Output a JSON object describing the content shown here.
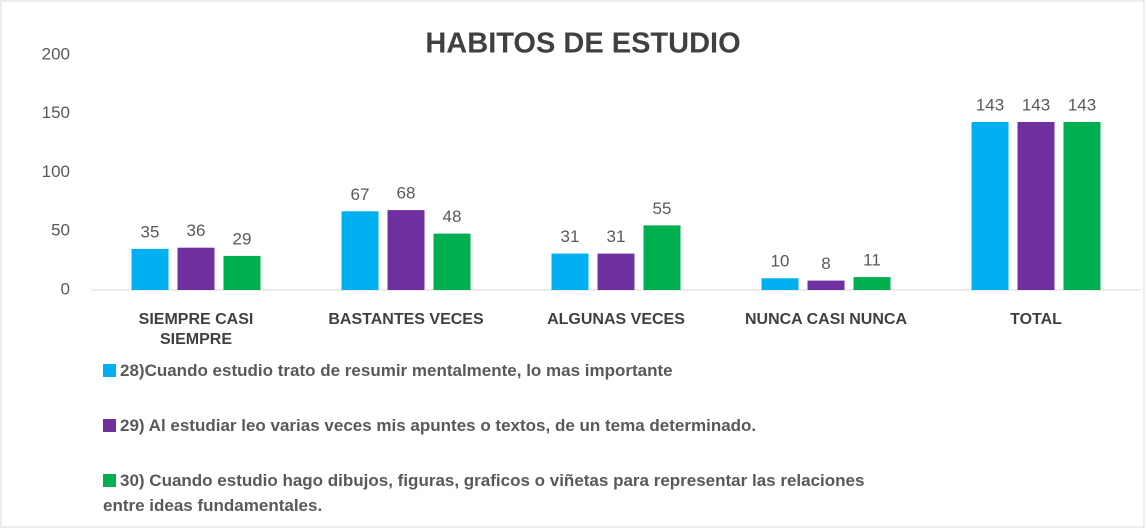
{
  "chart_data": {
    "type": "bar",
    "title": "HABITOS DE ESTUDIO",
    "categories": [
      "SIEMPRE CASI SIEMPRE",
      "BASTANTES VECES",
      "ALGUNAS VECES",
      "NUNCA CASI NUNCA",
      "TOTAL"
    ],
    "series": [
      {
        "name": "28)Cuando estudio trato de resumir mentalmente, lo mas importante",
        "color": "#00b0f0",
        "values": [
          35,
          67,
          31,
          10,
          143
        ]
      },
      {
        "name": "29) Al estudiar leo varias veces mis apuntes o textos, de un tema determinado.",
        "color": "#7030a0",
        "values": [
          36,
          68,
          31,
          8,
          143
        ]
      },
      {
        "name": "30) Cuando estudio hago dibujos, figuras, graficos o viñetas para representar las relaciones entre ideas fundamentales.",
        "color": "#00b050",
        "values": [
          29,
          48,
          55,
          11,
          143
        ]
      }
    ],
    "ylim": [
      0,
      200
    ],
    "yticks": [
      0,
      50,
      100,
      150,
      200
    ],
    "grid": false
  }
}
